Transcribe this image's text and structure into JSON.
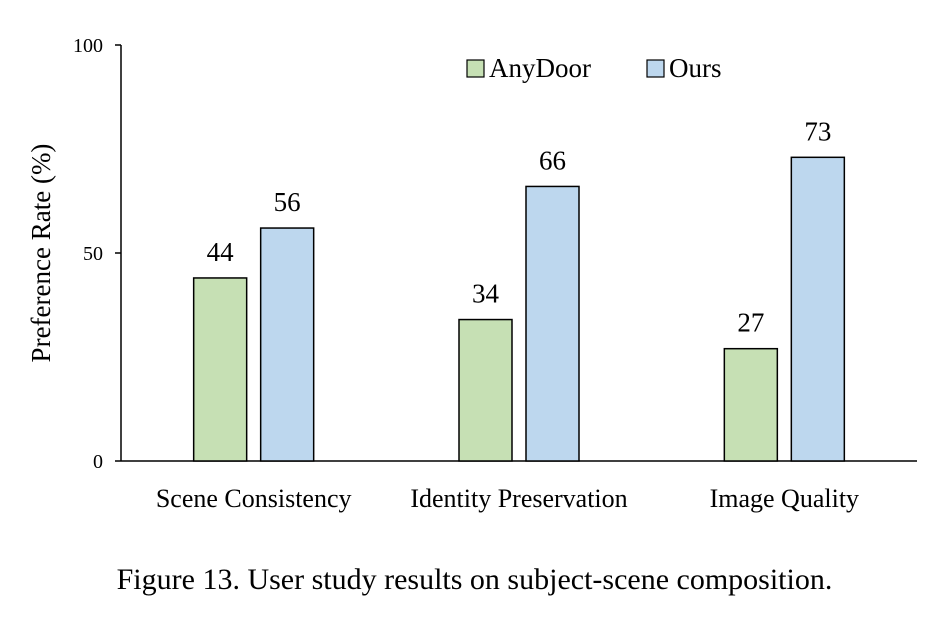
{
  "chart_data": {
    "type": "bar",
    "categories": [
      "Scene Consistency",
      "Identity Preservation",
      "Image Quality"
    ],
    "series": [
      {
        "name": "AnyDoor",
        "values": [
          44,
          34,
          27
        ],
        "color": "#c6e0b4",
        "stroke": "#000000"
      },
      {
        "name": "Ours",
        "values": [
          56,
          66,
          73
        ],
        "color": "#bdd7ee",
        "stroke": "#000000"
      }
    ],
    "ylim": [
      0,
      100
    ],
    "yticks": [
      0,
      50,
      100
    ],
    "ylabel": "Preference Rate (%)",
    "xlabel": "",
    "grid": false,
    "legend_position": "top-right",
    "data_labels": true
  },
  "caption": "Figure 13. User study results on subject-scene composition."
}
